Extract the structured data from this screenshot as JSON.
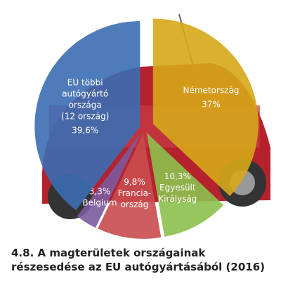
{
  "chart_data": {
    "type": "pie",
    "title": "4.8. A magterületek országainak részesedése az EU autógyártásából (2016)",
    "categories": [
      "Németország",
      "Egyesült\nKirályság",
      "Francia-\nország",
      "Belgium",
      "EU többi\nautógyártó\nországa\n(12 ország)"
    ],
    "values": [
      37,
      10.3,
      9.8,
      3.3,
      39.6
    ],
    "value_labels": [
      "37%",
      "10,3%",
      "9,8%",
      "3,3%",
      "39,6%"
    ],
    "colors": [
      "#d6a718",
      "#8cc04e",
      "#c94b4f",
      "#7b5a9c",
      "#3b6db2"
    ]
  }
}
